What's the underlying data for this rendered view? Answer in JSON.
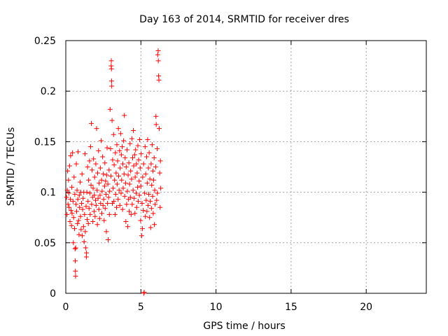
{
  "chart_data": {
    "type": "scatter",
    "title": "Day 163 of 2014, SRMTID for receiver dres",
    "xlabel": "GPS time / hours",
    "ylabel": "SRMTID / TECUs",
    "xlim": [
      0,
      24
    ],
    "ylim": [
      0,
      0.25
    ],
    "xticks": [
      0,
      5,
      10,
      15,
      20
    ],
    "xtick_labels": [
      "0",
      "5",
      "10",
      "15",
      "20"
    ],
    "yticks": [
      0,
      0.05,
      0.1,
      0.15,
      0.2,
      0.25
    ],
    "ytick_labels": [
      "0",
      "0.05",
      "0.1",
      "0.15",
      "0.2",
      "0.25"
    ],
    "grid": true,
    "marker": "+",
    "series": [
      {
        "name": "SRMTID",
        "color": "#ff0000",
        "points": [
          [
            0.05,
            0.095
          ],
          [
            0.08,
            0.078
          ],
          [
            0.1,
            0.102
          ],
          [
            0.12,
            0.121
          ],
          [
            0.15,
            0.088
          ],
          [
            0.18,
            0.112
          ],
          [
            0.2,
            0.099
          ],
          [
            0.22,
            0.085
          ],
          [
            0.25,
            0.126
          ],
          [
            0.28,
            0.071
          ],
          [
            0.3,
            0.093
          ],
          [
            0.32,
            0.136
          ],
          [
            0.35,
            0.082
          ],
          [
            0.38,
            0.067
          ],
          [
            0.4,
            0.105
          ],
          [
            0.42,
            0.079
          ],
          [
            0.45,
            0.139
          ],
          [
            0.48,
            0.091
          ],
          [
            0.5,
            0.05
          ],
          [
            0.52,
            0.075
          ],
          [
            0.55,
            0.115
          ],
          [
            0.58,
            0.064
          ],
          [
            0.6,
            0.098
          ],
          [
            0.62,
            0.044
          ],
          [
            0.63,
            0.032
          ],
          [
            0.64,
            0.022
          ],
          [
            0.65,
            0.017
          ],
          [
            0.66,
            0.045
          ],
          [
            0.68,
            0.088
          ],
          [
            0.7,
            0.128
          ],
          [
            0.72,
            0.081
          ],
          [
            0.75,
            0.102
          ],
          [
            0.78,
            0.069
          ],
          [
            0.8,
            0.093
          ],
          [
            0.82,
            0.14
          ],
          [
            0.85,
            0.072
          ],
          [
            0.88,
            0.058
          ],
          [
            0.9,
            0.097
          ],
          [
            0.92,
            0.085
          ],
          [
            0.95,
            0.11
          ],
          [
            0.98,
            0.076
          ],
          [
            1.0,
            0.1
          ],
          [
            1.02,
            0.063
          ],
          [
            1.05,
            0.089
          ],
          [
            1.08,
            0.118
          ],
          [
            1.1,
            0.057
          ],
          [
            1.12,
            0.083
          ],
          [
            1.15,
            0.094
          ],
          [
            1.18,
            0.066
          ],
          [
            1.2,
            0.1
          ],
          [
            1.22,
            0.051
          ],
          [
            1.25,
            0.078
          ],
          [
            1.28,
            0.138
          ],
          [
            1.3,
            0.061
          ],
          [
            1.32,
            0.045
          ],
          [
            1.35,
            0.086
          ],
          [
            1.37,
            0.036
          ],
          [
            1.38,
            0.04
          ],
          [
            1.4,
            0.1
          ],
          [
            1.42,
            0.073
          ],
          [
            1.45,
            0.125
          ],
          [
            1.48,
            0.091
          ],
          [
            1.5,
            0.069
          ],
          [
            1.52,
            0.112
          ],
          [
            1.55,
            0.084
          ],
          [
            1.58,
            0.131
          ],
          [
            1.6,
            0.099
          ],
          [
            1.62,
            0.078
          ],
          [
            1.65,
            0.145
          ],
          [
            1.68,
            0.107
          ],
          [
            1.7,
            0.168
          ],
          [
            1.72,
            0.088
          ],
          [
            1.75,
            0.122
          ],
          [
            1.78,
            0.095
          ],
          [
            1.8,
            0.071
          ],
          [
            1.82,
            0.104
          ],
          [
            1.85,
            0.133
          ],
          [
            1.88,
            0.081
          ],
          [
            1.9,
            0.097
          ],
          [
            1.92,
            0.115
          ],
          [
            1.95,
            0.076
          ],
          [
            1.98,
            0.092
          ],
          [
            2.0,
            0.128
          ],
          [
            2.02,
            0.087
          ],
          [
            2.05,
            0.163
          ],
          [
            2.08,
            0.102
          ],
          [
            2.1,
            0.068
          ],
          [
            2.12,
            0.119
          ],
          [
            2.15,
            0.094
          ],
          [
            2.18,
            0.141
          ],
          [
            2.2,
            0.083
          ],
          [
            2.22,
            0.109
          ],
          [
            2.25,
            0.074
          ],
          [
            2.28,
            0.097
          ],
          [
            2.3,
            0.124
          ],
          [
            2.32,
            0.089
          ],
          [
            2.35,
            0.151
          ],
          [
            2.38,
            0.112
          ],
          [
            2.4,
            0.079
          ],
          [
            2.42,
            0.101
          ],
          [
            2.45,
            0.135
          ],
          [
            2.48,
            0.087
          ],
          [
            2.5,
            0.118
          ],
          [
            2.52,
            0.093
          ],
          [
            2.55,
            0.072
          ],
          [
            2.58,
            0.106
          ],
          [
            2.6,
            0.129
          ],
          [
            2.62,
            0.084
          ],
          [
            2.65,
            0.111
          ],
          [
            2.68,
            0.098
          ],
          [
            2.7,
            0.061
          ],
          [
            2.72,
            0.117
          ],
          [
            2.75,
            0.144
          ],
          [
            2.78,
            0.089
          ],
          [
            2.8,
            0.108
          ],
          [
            2.82,
            0.053
          ],
          [
            2.85,
            0.095
          ],
          [
            2.88,
            0.122
          ],
          [
            2.9,
            0.078
          ],
          [
            2.92,
            0.101
          ],
          [
            2.95,
            0.182
          ],
          [
            2.98,
            0.143
          ],
          [
            3.0,
            0.116
          ],
          [
            3.02,
            0.225
          ],
          [
            3.03,
            0.23
          ],
          [
            3.04,
            0.222
          ],
          [
            3.05,
            0.21
          ],
          [
            3.06,
            0.205
          ],
          [
            3.08,
            0.171
          ],
          [
            3.1,
            0.089
          ],
          [
            3.12,
            0.132
          ],
          [
            3.15,
            0.104
          ],
          [
            3.18,
            0.157
          ],
          [
            3.2,
            0.091
          ],
          [
            3.22,
            0.127
          ],
          [
            3.25,
            0.112
          ],
          [
            3.28,
            0.078
          ],
          [
            3.3,
            0.139
          ],
          [
            3.32,
            0.098
          ],
          [
            3.35,
            0.119
          ],
          [
            3.38,
            0.085
          ],
          [
            3.4,
            0.147
          ],
          [
            3.42,
            0.108
          ],
          [
            3.45,
            0.131
          ],
          [
            3.48,
            0.093
          ],
          [
            3.5,
            0.163
          ],
          [
            3.52,
            0.116
          ],
          [
            3.55,
            0.102
          ],
          [
            3.58,
            0.141
          ],
          [
            3.6,
            0.087
          ],
          [
            3.62,
            0.124
          ],
          [
            3.65,
            0.158
          ],
          [
            3.68,
            0.099
          ],
          [
            3.7,
            0.137
          ],
          [
            3.72,
            0.112
          ],
          [
            3.75,
            0.145
          ],
          [
            3.78,
            0.083
          ],
          [
            3.8,
            0.128
          ],
          [
            3.82,
            0.104
          ],
          [
            3.85,
            0.151
          ],
          [
            3.88,
            0.118
          ],
          [
            3.9,
            0.176
          ],
          [
            3.92,
            0.096
          ],
          [
            3.95,
            0.134
          ],
          [
            3.98,
            0.109
          ],
          [
            4.0,
            0.071
          ],
          [
            4.02,
            0.125
          ],
          [
            4.05,
            0.088
          ],
          [
            4.08,
            0.142
          ],
          [
            4.1,
            0.101
          ],
          [
            4.12,
            0.066
          ],
          [
            4.15,
            0.117
          ],
          [
            4.18,
            0.093
          ],
          [
            4.2,
            0.129
          ],
          [
            4.22,
            0.081
          ],
          [
            4.25,
            0.108
          ],
          [
            4.28,
            0.148
          ],
          [
            4.3,
            0.095
          ],
          [
            4.32,
            0.121
          ],
          [
            4.35,
            0.078
          ],
          [
            4.38,
            0.113
          ],
          [
            4.4,
            0.153
          ],
          [
            4.42,
            0.088
          ],
          [
            4.45,
            0.134
          ],
          [
            4.48,
            0.102
          ],
          [
            4.5,
            0.161
          ],
          [
            4.52,
            0.126
          ],
          [
            4.55,
            0.094
          ],
          [
            4.58,
            0.137
          ],
          [
            4.6,
            0.079
          ],
          [
            4.62,
            0.115
          ],
          [
            4.65,
            0.142
          ],
          [
            4.68,
            0.099
          ],
          [
            4.7,
            0.128
          ],
          [
            4.72,
            0.085
          ],
          [
            4.75,
            0.119
          ],
          [
            4.78,
            0.105
          ],
          [
            4.8,
            0.146
          ],
          [
            4.82,
            0.091
          ],
          [
            4.85,
            0.132
          ],
          [
            4.88,
            0.111
          ],
          [
            4.9,
            0.097
          ],
          [
            4.92,
            0.152
          ],
          [
            4.95,
            0.124
          ],
          [
            4.98,
            0.072
          ],
          [
            5.0,
            0.106
          ],
          [
            5.02,
            0.138
          ],
          [
            5.05,
            0.057
          ],
          [
            5.08,
            0.089
          ],
          [
            5.1,
            0.064
          ],
          [
            5.12,
            0.115
          ],
          [
            5.15,
            0.082
          ],
          [
            5.18,
            0.128
          ],
          [
            5.2,
            0.0
          ],
          [
            5.22,
            0.001
          ],
          [
            5.25,
            0.099
          ],
          [
            5.28,
            0.145
          ],
          [
            5.3,
            0.076
          ],
          [
            5.32,
            0.118
          ],
          [
            5.35,
            0.092
          ],
          [
            5.38,
            0.135
          ],
          [
            5.4,
            0.081
          ],
          [
            5.42,
            0.109
          ],
          [
            5.45,
            0.152
          ],
          [
            5.48,
            0.087
          ],
          [
            5.5,
            0.124
          ],
          [
            5.52,
            0.098
          ],
          [
            5.55,
            0.139
          ],
          [
            5.58,
            0.075
          ],
          [
            5.6,
            0.113
          ],
          [
            5.62,
            0.091
          ],
          [
            5.65,
            0.065
          ],
          [
            5.68,
            0.128
          ],
          [
            5.7,
            0.084
          ],
          [
            5.72,
            0.107
          ],
          [
            5.75,
            0.147
          ],
          [
            5.78,
            0.096
          ],
          [
            5.8,
            0.121
          ],
          [
            5.82,
            0.079
          ],
          [
            5.85,
            0.112
          ],
          [
            5.88,
            0.134
          ],
          [
            5.9,
            0.068
          ],
          [
            5.92,
            0.102
          ],
          [
            5.95,
            0.088
          ],
          [
            5.98,
            0.125
          ],
          [
            6.0,
            0.175
          ],
          [
            6.02,
            0.167
          ],
          [
            6.05,
            0.092
          ],
          [
            6.08,
            0.143
          ],
          [
            6.1,
            0.099
          ],
          [
            6.12,
            0.236
          ],
          [
            6.15,
            0.24
          ],
          [
            6.16,
            0.23
          ],
          [
            6.18,
            0.215
          ],
          [
            6.2,
            0.211
          ],
          [
            6.22,
            0.163
          ],
          [
            6.25,
            0.119
          ],
          [
            6.28,
            0.085
          ],
          [
            6.3,
            0.131
          ],
          [
            6.32,
            0.104
          ]
        ]
      }
    ]
  }
}
